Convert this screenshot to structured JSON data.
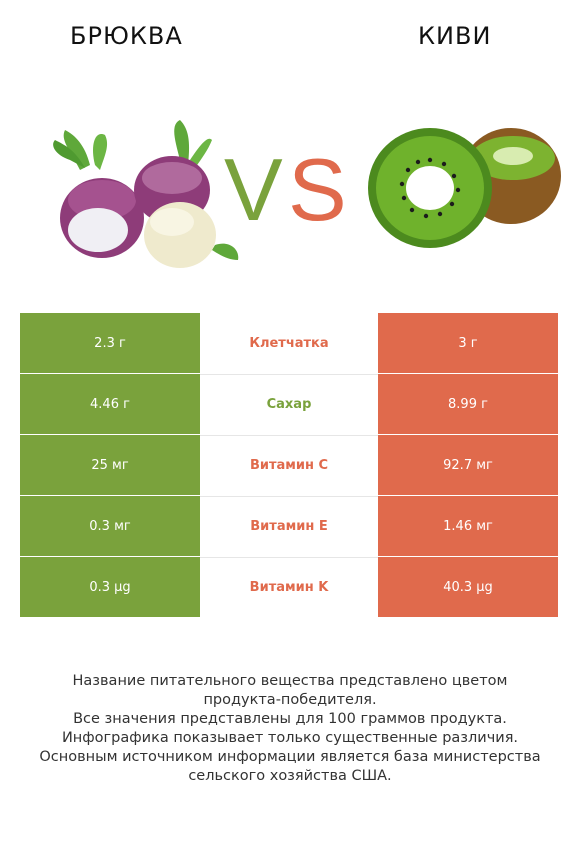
{
  "header": {
    "left_title": "БРЮКВА",
    "right_title": "КИВИ",
    "vs_text": "VS"
  },
  "colors": {
    "left_accent": "#7aa23c",
    "right_accent": "#e06a4c"
  },
  "icons": {
    "left_image": "rutabaga-illustration",
    "right_image": "kiwi-illustration"
  },
  "rows": [
    {
      "left": "2.3 г",
      "nutrient": "Клетчатка",
      "right": "3 г",
      "winner": "right"
    },
    {
      "left": "4.46 г",
      "nutrient": "Сахар",
      "right": "8.99 г",
      "winner": "left"
    },
    {
      "left": "25 мг",
      "nutrient": "Витамин C",
      "right": "92.7 мг",
      "winner": "right"
    },
    {
      "left": "0.3 мг",
      "nutrient": "Витамин E",
      "right": "1.46 мг",
      "winner": "right"
    },
    {
      "left": "0.3 µg",
      "nutrient": "Витамин K",
      "right": "40.3 µg",
      "winner": "right"
    }
  ],
  "footer": {
    "lines": [
      "Название питательного вещества представлено цветом",
      "продукта-победителя.",
      "Все значения представлены для 100 граммов продукта.",
      "Инфографика показывает только существенные различия.",
      "Основным источником информации является база министерства",
      "сельского хозяйства США."
    ]
  }
}
